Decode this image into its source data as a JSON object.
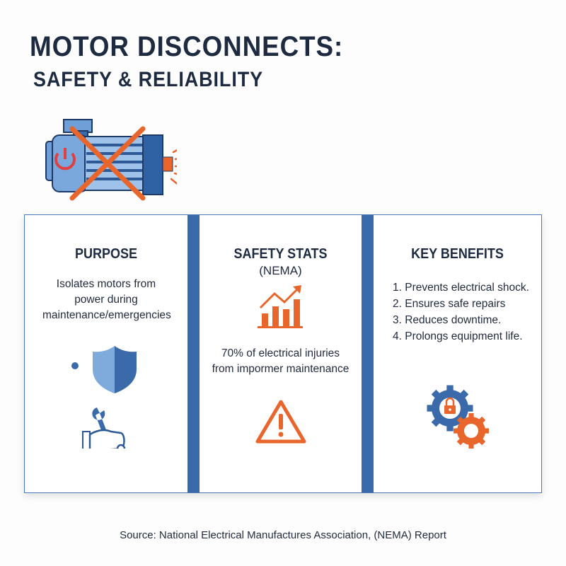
{
  "title": {
    "line1": "MOTOR DISCONNECTS:",
    "line2": "SAFETY & RELIABILITY"
  },
  "hero_icon": "motor-crossed-out-icon",
  "colors": {
    "navy": "#1d2a40",
    "blue": "#3a6aa9",
    "orange": "#e8652b",
    "red": "#e04040"
  },
  "columns": {
    "purpose": {
      "heading": "PURPOSE",
      "text": "Isolates motors from power during maintenance/emergencies",
      "icons": [
        "shield-icon",
        "hand-wrench-icon"
      ]
    },
    "stats": {
      "heading": "SAFETY STATS",
      "subheading": "(NEMA)",
      "text": "70% of electrical injuries from impormer maintenance",
      "icons": [
        "bar-chart-trend-icon",
        "warning-triangle-icon"
      ]
    },
    "benefits": {
      "heading": "KEY BENEFITS",
      "items": [
        "1.  Prevents electrical shock.",
        "2.  Ensures safe repairs",
        "3.  Reduces downtime.",
        "4.  Prolongs equipment life."
      ],
      "icons": [
        "gears-lock-icon"
      ]
    }
  },
  "source": "Source: National Electrical Manufactures Association, (NEMA) Report"
}
